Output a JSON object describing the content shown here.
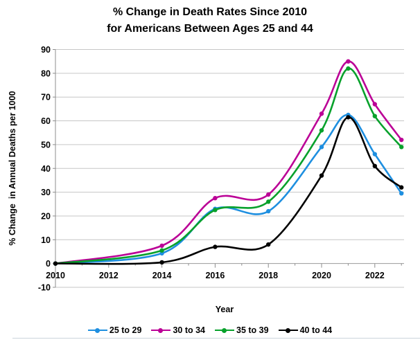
{
  "title": {
    "line1": "% Change in Death Rates Since 2010",
    "line2": "for Americans Between Ages 25 and 44"
  },
  "chart_data": {
    "type": "line",
    "title": "% Change in Death Rates Since 2010 for Americans Between Ages 25 and 44",
    "xlabel": "Year",
    "ylabel": "% Change  in Annual Deaths per 1000",
    "x": [
      2010,
      2014,
      2016,
      2018,
      2020,
      2021,
      2022,
      2023
    ],
    "series": [
      {
        "name": "25 to 29",
        "color": "#1e8fe0",
        "values": [
          0,
          4.3,
          23,
          22,
          49,
          62.5,
          46,
          29.5
        ]
      },
      {
        "name": "30 to 34",
        "color": "#bb0096",
        "values": [
          0,
          7.5,
          27.5,
          29,
          63,
          85,
          67,
          52
        ]
      },
      {
        "name": "35 to 39",
        "color": "#07a12b",
        "values": [
          0,
          5.5,
          22.5,
          26,
          56,
          82,
          62,
          49
        ]
      },
      {
        "name": "40 to 44",
        "color": "#000000",
        "values": [
          0,
          0.5,
          7,
          8,
          37,
          61.5,
          41,
          32
        ]
      }
    ],
    "ylim": [
      -10,
      90
    ],
    "yticks": [
      90,
      80,
      70,
      60,
      50,
      40,
      30,
      20,
      10,
      0,
      -10
    ],
    "xticks": [
      2010,
      2012,
      2014,
      2016,
      2018,
      2020,
      2022
    ],
    "xlim": [
      2010,
      2023
    ],
    "grid": "horizontal",
    "legend_position": "bottom",
    "style": {
      "grid_color": "#c6c6c6",
      "zero_line_color": "#9a9a9a",
      "axis_color": "#8c8c8c",
      "text_color": "#000000"
    }
  }
}
